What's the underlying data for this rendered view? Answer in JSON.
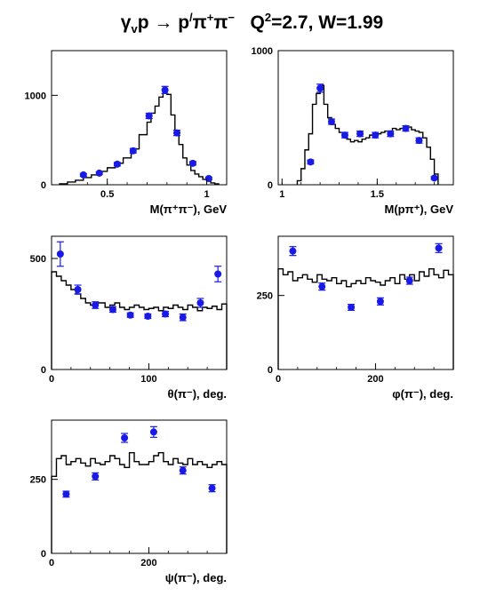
{
  "title": {
    "gamma": "γ",
    "v": "v",
    "p": "p",
    "arrow": " → ",
    "p2": "p",
    "prime": "/",
    "pi": "π",
    "plus": "+",
    "pi2": "π",
    "minus": "−",
    "q2_label": "Q",
    "q2_exp": "2",
    "q2_value": "=2.7, W=1.99"
  },
  "colors": {
    "data_points": "#1a1ae6",
    "histogram": "#000000",
    "frame": "#000000"
  },
  "chart_data": [
    {
      "type": "line",
      "subtype": "histogram-with-points",
      "xlabel": "M(π⁺π⁻), GeV",
      "xlim": [
        0.22,
        1.1
      ],
      "ylim": [
        0,
        1500
      ],
      "xticks": [
        0.5,
        1
      ],
      "xtick_labels": [
        "0.5",
        "1"
      ],
      "yticks": [
        0,
        1000
      ],
      "ytick_labels": [
        "0",
        "1000"
      ],
      "series": [
        {
          "kind": "histogram",
          "edges": [
            0.26,
            0.3,
            0.34,
            0.38,
            0.42,
            0.46,
            0.5,
            0.54,
            0.58,
            0.62,
            0.66,
            0.7,
            0.72,
            0.74,
            0.76,
            0.78,
            0.8,
            0.82,
            0.84,
            0.86,
            0.88,
            0.9,
            0.92,
            0.94,
            0.96,
            0.98,
            1.0,
            1.02,
            1.04,
            1.06
          ],
          "values": [
            10,
            30,
            50,
            80,
            110,
            150,
            190,
            240,
            300,
            400,
            560,
            700,
            800,
            880,
            980,
            1070,
            1010,
            780,
            590,
            450,
            300,
            220,
            160,
            120,
            90,
            60,
            40,
            20,
            10
          ]
        },
        {
          "kind": "points",
          "x": [
            0.38,
            0.46,
            0.55,
            0.63,
            0.71,
            0.79,
            0.85,
            0.93,
            1.01
          ],
          "y": [
            110,
            130,
            230,
            380,
            770,
            1060,
            580,
            240,
            70
          ],
          "err": [
            15,
            15,
            20,
            25,
            30,
            40,
            30,
            20,
            15
          ]
        }
      ]
    },
    {
      "type": "line",
      "subtype": "histogram-with-points",
      "xlabel": "M(pπ⁺), GeV",
      "xlim": [
        0.98,
        1.9
      ],
      "ylim": [
        0,
        1000
      ],
      "xticks": [
        1,
        1.5
      ],
      "xtick_labels": [
        "1",
        "1.5"
      ],
      "yticks": [
        0,
        1000
      ],
      "ytick_labels": [
        "0",
        "1000"
      ],
      "series": [
        {
          "kind": "histogram",
          "edges": [
            1.08,
            1.1,
            1.12,
            1.14,
            1.16,
            1.18,
            1.2,
            1.22,
            1.24,
            1.26,
            1.28,
            1.3,
            1.32,
            1.34,
            1.36,
            1.38,
            1.4,
            1.42,
            1.44,
            1.46,
            1.48,
            1.5,
            1.52,
            1.54,
            1.56,
            1.58,
            1.6,
            1.62,
            1.64,
            1.66,
            1.68,
            1.7,
            1.72,
            1.74,
            1.76,
            1.78,
            1.8,
            1.82
          ],
          "values": [
            30,
            120,
            260,
            380,
            600,
            680,
            740,
            600,
            500,
            450,
            420,
            390,
            370,
            340,
            320,
            330,
            320,
            340,
            350,
            370,
            370,
            380,
            390,
            400,
            400,
            420,
            410,
            420,
            430,
            430,
            410,
            400,
            390,
            350,
            280,
            190,
            80
          ]
        },
        {
          "kind": "points",
          "x": [
            1.15,
            1.2,
            1.26,
            1.33,
            1.41,
            1.49,
            1.57,
            1.65,
            1.72,
            1.8
          ],
          "y": [
            170,
            720,
            470,
            370,
            380,
            370,
            380,
            420,
            330,
            50
          ],
          "err": [
            15,
            30,
            20,
            20,
            20,
            20,
            20,
            20,
            20,
            10
          ]
        }
      ]
    },
    {
      "type": "line",
      "subtype": "histogram-with-points",
      "xlabel": "θ(π⁻), deg.",
      "xlim": [
        0,
        180
      ],
      "ylim": [
        0,
        600
      ],
      "xticks": [
        0,
        100
      ],
      "xtick_labels": [
        "0",
        "100"
      ],
      "yticks": [
        0,
        500
      ],
      "ytick_labels": [
        "0",
        "500"
      ],
      "series": [
        {
          "kind": "histogram",
          "edges": [
            0,
            5,
            10,
            15,
            20,
            25,
            30,
            35,
            40,
            45,
            50,
            55,
            60,
            65,
            70,
            75,
            80,
            85,
            90,
            95,
            100,
            105,
            110,
            115,
            120,
            125,
            130,
            135,
            140,
            145,
            150,
            155,
            160,
            165,
            170,
            175,
            180
          ],
          "values": [
            440,
            420,
            400,
            380,
            360,
            340,
            320,
            300,
            290,
            300,
            300,
            280,
            290,
            300,
            280,
            270,
            280,
            290,
            280,
            270,
            275,
            280,
            265,
            280,
            275,
            290,
            280,
            270,
            290,
            280,
            265,
            280,
            275,
            285,
            270,
            295
          ]
        },
        {
          "kind": "points",
          "x": [
            9,
            27,
            45,
            63,
            81,
            99,
            117,
            135,
            153,
            171
          ],
          "y": [
            520,
            360,
            290,
            270,
            245,
            240,
            250,
            235,
            300,
            430
          ],
          "err": [
            55,
            20,
            15,
            12,
            10,
            10,
            12,
            15,
            20,
            35
          ]
        }
      ]
    },
    {
      "type": "line",
      "subtype": "histogram-with-points",
      "xlabel": "φ(π⁻), deg.",
      "xlim": [
        0,
        360
      ],
      "ylim": [
        0,
        450
      ],
      "xticks": [
        0,
        200
      ],
      "xtick_labels": [
        "0",
        "200"
      ],
      "yticks": [
        250
      ],
      "ytick_labels": [
        "250"
      ],
      "series": [
        {
          "kind": "histogram",
          "edges": [
            0,
            10,
            20,
            30,
            40,
            50,
            60,
            70,
            80,
            90,
            100,
            110,
            120,
            130,
            140,
            150,
            160,
            170,
            180,
            190,
            200,
            210,
            220,
            230,
            240,
            250,
            260,
            270,
            280,
            290,
            300,
            310,
            320,
            330,
            340,
            350,
            360
          ],
          "values": [
            340,
            320,
            330,
            300,
            310,
            320,
            305,
            295,
            320,
            305,
            300,
            310,
            290,
            300,
            280,
            290,
            300,
            290,
            310,
            300,
            295,
            285,
            300,
            310,
            290,
            320,
            305,
            320,
            300,
            330,
            315,
            340,
            320,
            310,
            335,
            320
          ]
        },
        {
          "kind": "points",
          "x": [
            30,
            90,
            150,
            210,
            270,
            330
          ],
          "y": [
            400,
            280,
            210,
            230,
            300,
            410
          ],
          "err": [
            15,
            12,
            10,
            12,
            12,
            15
          ]
        }
      ]
    },
    {
      "type": "line",
      "subtype": "histogram-with-points",
      "xlabel": "ψ(π⁻), deg.",
      "xlim": [
        0,
        360
      ],
      "ylim": [
        0,
        450
      ],
      "xticks": [
        0,
        200
      ],
      "xtick_labels": [
        "0",
        "200"
      ],
      "yticks": [
        250
      ],
      "ytick_labels": [
        "250"
      ],
      "series": [
        {
          "kind": "histogram",
          "edges": [
            0,
            10,
            20,
            30,
            40,
            50,
            60,
            70,
            80,
            90,
            100,
            110,
            120,
            130,
            140,
            150,
            160,
            170,
            180,
            190,
            200,
            210,
            220,
            230,
            240,
            250,
            260,
            270,
            280,
            290,
            300,
            310,
            320,
            330,
            340,
            350,
            360
          ],
          "values": [
            260,
            320,
            330,
            300,
            310,
            320,
            305,
            295,
            320,
            305,
            300,
            310,
            330,
            320,
            300,
            290,
            340,
            310,
            300,
            300,
            310,
            330,
            340,
            310,
            300,
            320,
            305,
            300,
            320,
            300,
            310,
            300,
            290,
            300,
            310,
            300
          ]
        },
        {
          "kind": "points",
          "x": [
            30,
            90,
            150,
            210,
            270,
            330
          ],
          "y": [
            200,
            260,
            390,
            410,
            280,
            220
          ],
          "err": [
            10,
            12,
            15,
            18,
            12,
            12
          ]
        }
      ]
    }
  ]
}
